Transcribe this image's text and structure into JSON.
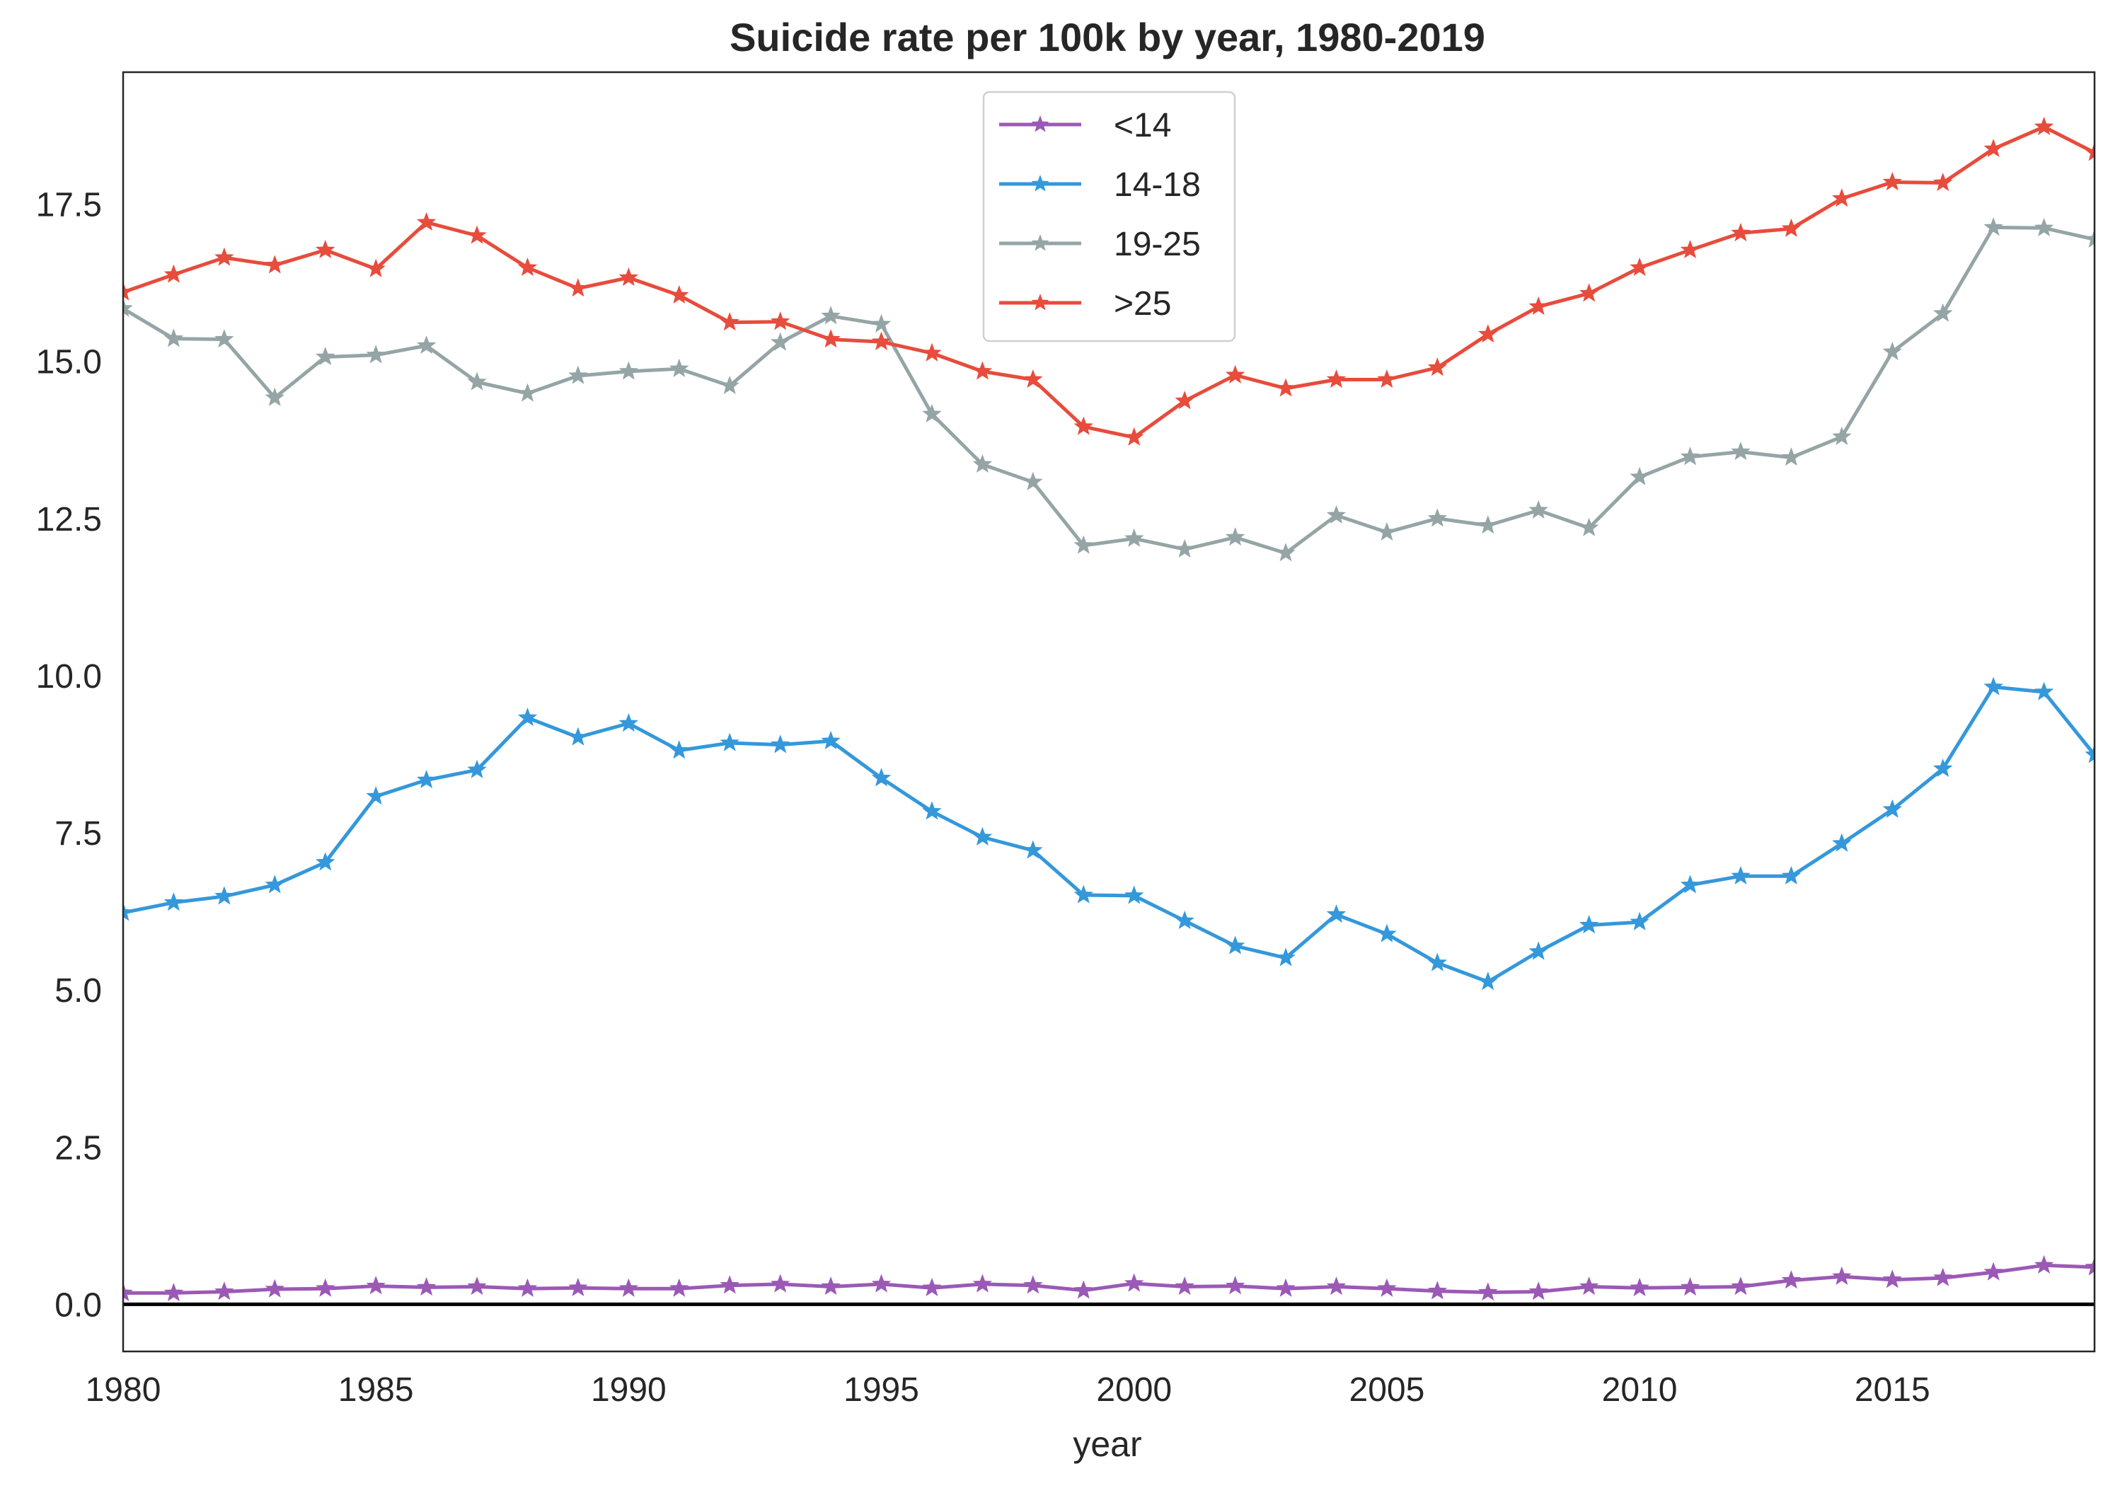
{
  "chart_data": {
    "type": "line",
    "title": "Suicide rate per 100k by year, 1980-2019",
    "xlabel": "year",
    "ylabel": "",
    "xlim": [
      1980,
      2019
    ],
    "ylim": [
      -0.75,
      19.6
    ],
    "xticks": [
      1980,
      1985,
      1990,
      1995,
      2000,
      2005,
      2010,
      2015
    ],
    "yticks": [
      0.0,
      2.5,
      5.0,
      7.5,
      10.0,
      12.5,
      15.0,
      17.5
    ],
    "grid": false,
    "legend_position": "top-center",
    "marker": "star",
    "reference_line": 0,
    "x": [
      1980,
      1981,
      1982,
      1983,
      1984,
      1985,
      1986,
      1987,
      1988,
      1989,
      1990,
      1991,
      1992,
      1993,
      1994,
      1995,
      1996,
      1997,
      1998,
      1999,
      2000,
      2001,
      2002,
      2003,
      2004,
      2005,
      2006,
      2007,
      2008,
      2009,
      2010,
      2011,
      2012,
      2013,
      2014,
      2015,
      2016,
      2017,
      2018,
      2019
    ],
    "series": [
      {
        "name": "<14",
        "color": "#9b59b6",
        "values": [
          0.18,
          0.18,
          0.2,
          0.24,
          0.25,
          0.29,
          0.27,
          0.28,
          0.25,
          0.26,
          0.25,
          0.25,
          0.3,
          0.32,
          0.28,
          0.32,
          0.26,
          0.32,
          0.3,
          0.22,
          0.33,
          0.28,
          0.29,
          0.25,
          0.28,
          0.25,
          0.21,
          0.19,
          0.2,
          0.28,
          0.26,
          0.27,
          0.28,
          0.38,
          0.44,
          0.39,
          0.42,
          0.51,
          0.62,
          0.59
        ]
      },
      {
        "name": "14-18",
        "color": "#3498db",
        "values": [
          6.23,
          6.39,
          6.49,
          6.67,
          7.03,
          8.08,
          8.34,
          8.5,
          9.33,
          9.02,
          9.24,
          8.81,
          8.93,
          8.9,
          8.96,
          8.37,
          7.84,
          7.43,
          7.22,
          6.51,
          6.5,
          6.1,
          5.7,
          5.51,
          6.2,
          5.89,
          5.43,
          5.13,
          5.61,
          6.03,
          6.08,
          6.67,
          6.81,
          6.81,
          7.33,
          7.87,
          8.52,
          9.82,
          9.74,
          8.74
        ]
      },
      {
        "name": "19-25",
        "color": "#95a5a6",
        "values": [
          15.84,
          15.36,
          15.35,
          14.42,
          15.07,
          15.1,
          15.25,
          14.67,
          14.49,
          14.77,
          14.84,
          14.88,
          14.61,
          15.3,
          15.72,
          15.59,
          14.16,
          13.36,
          13.08,
          12.07,
          12.18,
          12.01,
          12.2,
          11.95,
          12.55,
          12.28,
          12.5,
          12.39,
          12.63,
          12.35,
          13.16,
          13.48,
          13.56,
          13.47,
          13.8,
          15.15,
          15.76,
          17.13,
          17.12,
          16.94
        ]
      },
      {
        "name": ">25",
        "color": "#e74c3c",
        "values": [
          16.1,
          16.38,
          16.65,
          16.53,
          16.77,
          16.47,
          17.21,
          17.0,
          16.49,
          16.16,
          16.33,
          16.05,
          15.62,
          15.63,
          15.35,
          15.31,
          15.13,
          14.84,
          14.71,
          13.96,
          13.79,
          14.37,
          14.78,
          14.57,
          14.71,
          14.71,
          14.9,
          15.43,
          15.87,
          16.08,
          16.49,
          16.77,
          17.04,
          17.11,
          17.59,
          17.85,
          17.84,
          18.38,
          18.73,
          18.32
        ]
      }
    ]
  }
}
